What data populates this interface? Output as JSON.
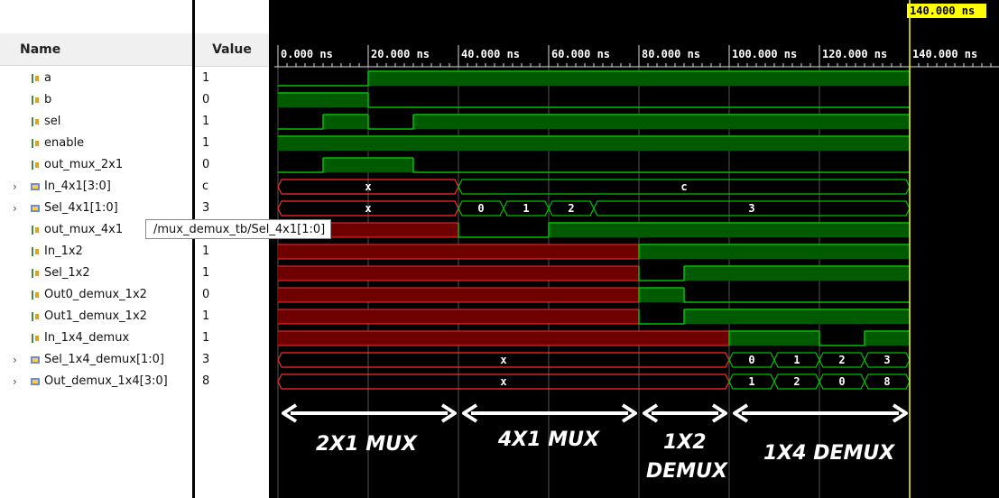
{
  "headers": {
    "name": "Name",
    "value": "Value"
  },
  "cursor": {
    "label": "140.000 ns"
  },
  "timescale": [
    "0.000 ns",
    "20.000 ns",
    "40.000 ns",
    "60.000 ns",
    "80.000 ns",
    "100.000 ns",
    "120.000 ns",
    "140.000 ns"
  ],
  "signals": [
    {
      "name": "a",
      "value": "1",
      "kind": "bit",
      "expandable": false
    },
    {
      "name": "b",
      "value": "0",
      "kind": "bit",
      "expandable": false
    },
    {
      "name": "sel",
      "value": "1",
      "kind": "bit",
      "expandable": false
    },
    {
      "name": "enable",
      "value": "1",
      "kind": "bit",
      "expandable": false
    },
    {
      "name": "out_mux_2x1",
      "value": "0",
      "kind": "bit",
      "expandable": false
    },
    {
      "name": "In_4x1[3:0]",
      "value": "c",
      "kind": "bus",
      "expandable": true
    },
    {
      "name": "Sel_4x1[1:0]",
      "value": "3",
      "kind": "bus",
      "expandable": true
    },
    {
      "name": "out_mux_4x1",
      "value": "1",
      "kind": "bit",
      "expandable": false
    },
    {
      "name": "In_1x2",
      "value": "1",
      "kind": "bit",
      "expandable": false
    },
    {
      "name": "Sel_1x2",
      "value": "1",
      "kind": "bit",
      "expandable": false
    },
    {
      "name": "Out0_demux_1x2",
      "value": "0",
      "kind": "bit",
      "expandable": false
    },
    {
      "name": "Out1_demux_1x2",
      "value": "1",
      "kind": "bit",
      "expandable": false
    },
    {
      "name": "In_1x4_demux",
      "value": "1",
      "kind": "bit",
      "expandable": false
    },
    {
      "name": "Sel_1x4_demux[1:0]",
      "value": "3",
      "kind": "bus",
      "expandable": true
    },
    {
      "name": "Out_demux_1x4[3:0]",
      "value": "8",
      "kind": "bus",
      "expandable": true
    }
  ],
  "tooltip": "/mux_demux_tb/Sel_4x1[1:0]",
  "waves": [
    {
      "t": "bit",
      "segs": [
        [
          0,
          20,
          "0"
        ],
        [
          20,
          140,
          "1"
        ]
      ]
    },
    {
      "t": "bit",
      "segs": [
        [
          0,
          20,
          "1"
        ],
        [
          20,
          140,
          "0"
        ]
      ]
    },
    {
      "t": "bit",
      "segs": [
        [
          0,
          10,
          "0"
        ],
        [
          10,
          20,
          "1"
        ],
        [
          20,
          30,
          "0"
        ],
        [
          30,
          140,
          "1"
        ]
      ]
    },
    {
      "t": "bit",
      "segs": [
        [
          0,
          140,
          "1"
        ]
      ]
    },
    {
      "t": "bit",
      "segs": [
        [
          0,
          10,
          "0"
        ],
        [
          10,
          30,
          "1"
        ],
        [
          30,
          140,
          "0"
        ]
      ]
    },
    {
      "t": "bus",
      "segs": [
        [
          0,
          40,
          "X"
        ],
        [
          40,
          140,
          "c"
        ]
      ]
    },
    {
      "t": "bus",
      "segs": [
        [
          0,
          40,
          "X"
        ],
        [
          40,
          50,
          "0"
        ],
        [
          50,
          60,
          "1"
        ],
        [
          60,
          70,
          "2"
        ],
        [
          70,
          140,
          "3"
        ]
      ]
    },
    {
      "t": "bit",
      "segs": [
        [
          0,
          40,
          "X"
        ],
        [
          40,
          60,
          "0"
        ],
        [
          60,
          140,
          "1"
        ]
      ]
    },
    {
      "t": "bit",
      "segs": [
        [
          0,
          80,
          "X"
        ],
        [
          80,
          140,
          "1"
        ]
      ]
    },
    {
      "t": "bit",
      "segs": [
        [
          0,
          80,
          "X"
        ],
        [
          80,
          90,
          "0"
        ],
        [
          90,
          140,
          "1"
        ]
      ]
    },
    {
      "t": "bit",
      "segs": [
        [
          0,
          80,
          "X"
        ],
        [
          80,
          90,
          "1"
        ],
        [
          90,
          140,
          "0"
        ]
      ]
    },
    {
      "t": "bit",
      "segs": [
        [
          0,
          80,
          "X"
        ],
        [
          80,
          90,
          "0"
        ],
        [
          90,
          140,
          "1"
        ]
      ]
    },
    {
      "t": "bit",
      "segs": [
        [
          0,
          100,
          "X"
        ],
        [
          100,
          120,
          "1"
        ],
        [
          120,
          130,
          "0"
        ],
        [
          130,
          140,
          "1"
        ]
      ]
    },
    {
      "t": "bus",
      "segs": [
        [
          0,
          100,
          "X"
        ],
        [
          100,
          110,
          "0"
        ],
        [
          110,
          120,
          "1"
        ],
        [
          120,
          130,
          "2"
        ],
        [
          130,
          140,
          "3"
        ]
      ]
    },
    {
      "t": "bus",
      "segs": [
        [
          0,
          100,
          "X"
        ],
        [
          100,
          110,
          "1"
        ],
        [
          110,
          120,
          "2"
        ],
        [
          120,
          130,
          "0"
        ],
        [
          130,
          140,
          "8"
        ]
      ]
    }
  ],
  "sections": [
    {
      "label": "2X1 MUX",
      "from": 0,
      "to": 40
    },
    {
      "label": "4X1 MUX",
      "from": 40,
      "to": 80
    },
    {
      "label": "1X2",
      "label2": "DEMUX",
      "from": 80,
      "to": 100
    },
    {
      "label": "1X4 DEMUX",
      "from": 100,
      "to": 140
    }
  ],
  "colors": {
    "wave": "#00c000",
    "wave_fill": "#005a00",
    "x_fill": "#6e0000",
    "x_line": "#ff2a2a",
    "grid": "#555555",
    "cursor": "#ffff00"
  }
}
